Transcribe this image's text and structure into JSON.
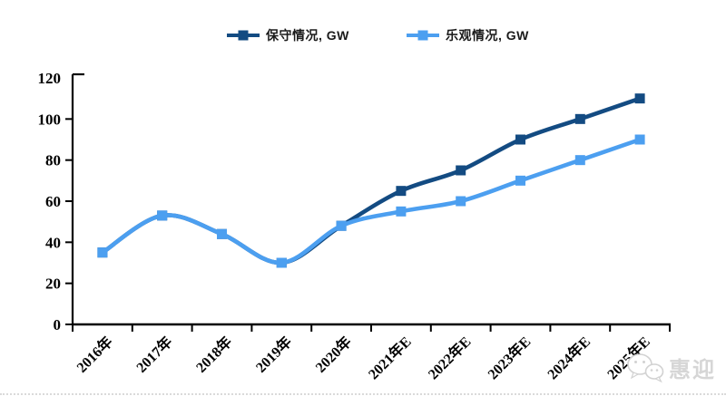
{
  "chart_data": {
    "type": "line",
    "categories": [
      "2016年",
      "2017年",
      "2018年",
      "2019年",
      "2020年",
      "2021年E",
      "2022年E",
      "2023年E",
      "2024年E",
      "2025年E"
    ],
    "series": [
      {
        "name": "保守情况, GW",
        "color": "#134b82",
        "values": [
          35,
          53,
          44,
          30,
          48,
          65,
          75,
          90,
          100,
          110
        ]
      },
      {
        "name": "乐观情况, GW",
        "color": "#4c9ff0",
        "values": [
          35,
          53,
          44,
          30,
          48,
          55,
          60,
          70,
          80,
          90
        ]
      }
    ],
    "title": "",
    "xlabel": "",
    "ylabel": "",
    "ylim": [
      0,
      120
    ],
    "ytick_step": 20,
    "yticks": [
      0,
      20,
      40,
      60,
      80,
      100,
      120
    ],
    "grid": false,
    "smooth": true,
    "marker": "square",
    "legend_position": "top",
    "axis_color": "#000000"
  },
  "legend": {
    "conservative_label": "保守情况, GW",
    "optimistic_label": "乐观情况, GW"
  },
  "watermark": {
    "text": "惠迎",
    "icon": "wechat-icon",
    "color": "#d6d6d6"
  }
}
